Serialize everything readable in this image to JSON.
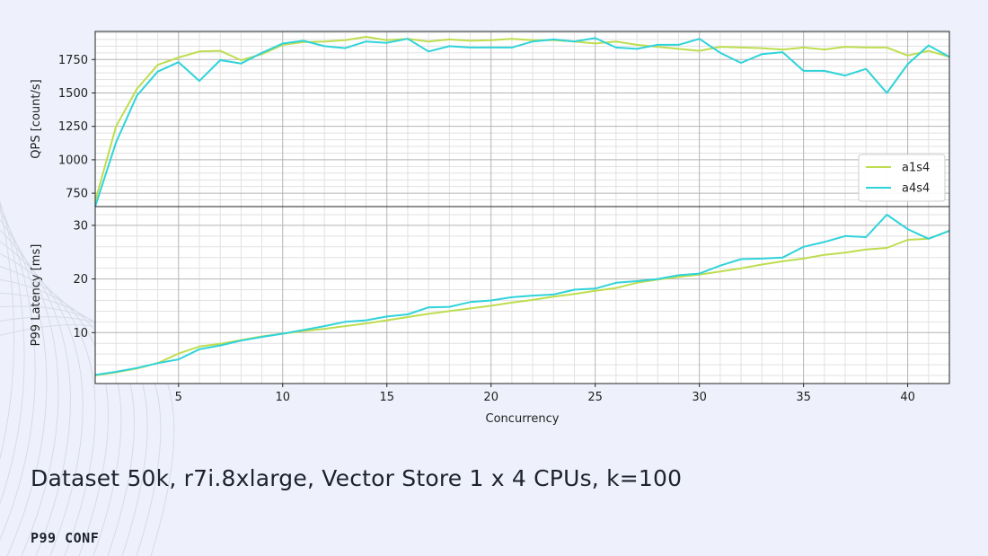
{
  "caption": "Dataset 50k, r7i.8xlarge, Vector Store 1 x 4 CPUs, k=100",
  "brand": "P99 CONF",
  "colors": {
    "a1s4": "#bedd4f",
    "a4s4": "#2fd3da",
    "grid_major": "#b4b4b4",
    "grid_minor": "#e1e1e1"
  },
  "chart_data": [
    {
      "type": "line",
      "ylabel": "QPS [count/s]",
      "xlabel": "",
      "xlim": [
        1,
        42
      ],
      "ylim": [
        650,
        1960
      ],
      "yticks": [
        750,
        1000,
        1250,
        1500,
        1750
      ],
      "xticks": [
        5,
        10,
        15,
        20,
        25,
        30,
        35,
        40
      ],
      "grid": true,
      "legend": "bottom-right",
      "x": [
        1,
        2,
        3,
        4,
        5,
        6,
        7,
        8,
        9,
        10,
        11,
        12,
        13,
        14,
        15,
        16,
        17,
        18,
        19,
        20,
        21,
        22,
        23,
        24,
        25,
        26,
        27,
        28,
        29,
        30,
        31,
        32,
        33,
        34,
        35,
        36,
        37,
        38,
        39,
        40,
        41,
        42
      ],
      "series": [
        {
          "name": "a1s4",
          "values": [
            690,
            1250,
            1530,
            1710,
            1765,
            1810,
            1815,
            1745,
            1790,
            1860,
            1880,
            1885,
            1895,
            1920,
            1895,
            1905,
            1885,
            1900,
            1890,
            1895,
            1905,
            1895,
            1895,
            1885,
            1870,
            1885,
            1860,
            1845,
            1830,
            1815,
            1845,
            1840,
            1835,
            1825,
            1840,
            1825,
            1845,
            1840,
            1840,
            1780,
            1815,
            1770
          ]
        },
        {
          "name": "a4s4",
          "values": [
            650,
            1130,
            1480,
            1660,
            1730,
            1590,
            1745,
            1720,
            1800,
            1870,
            1890,
            1850,
            1835,
            1885,
            1875,
            1905,
            1810,
            1850,
            1840,
            1840,
            1840,
            1885,
            1900,
            1885,
            1910,
            1840,
            1830,
            1860,
            1860,
            1905,
            1800,
            1725,
            1790,
            1805,
            1665,
            1665,
            1630,
            1680,
            1500,
            1715,
            1855,
            1770
          ]
        }
      ]
    },
    {
      "type": "line",
      "ylabel": "P99 Latency [ms]",
      "xlabel": "Concurrency",
      "xlim": [
        1,
        42
      ],
      "ylim": [
        0.5,
        33.5
      ],
      "yticks": [
        10,
        20,
        30
      ],
      "xticks": [
        5,
        10,
        15,
        20,
        25,
        30,
        35,
        40
      ],
      "grid": true,
      "x": [
        1,
        2,
        3,
        4,
        5,
        6,
        7,
        8,
        9,
        10,
        11,
        12,
        13,
        14,
        15,
        16,
        17,
        18,
        19,
        20,
        21,
        22,
        23,
        24,
        25,
        26,
        27,
        28,
        29,
        30,
        31,
        32,
        33,
        34,
        35,
        36,
        37,
        38,
        39,
        40,
        41,
        42
      ],
      "series": [
        {
          "name": "a1s4",
          "values": [
            2.0,
            2.6,
            3.3,
            4.3,
            6.1,
            7.4,
            7.9,
            8.6,
            9.3,
            9.8,
            10.3,
            10.7,
            11.2,
            11.7,
            12.3,
            12.9,
            13.5,
            14.0,
            14.5,
            15.0,
            15.6,
            16.1,
            16.7,
            17.2,
            17.8,
            18.3,
            19.3,
            19.9,
            20.4,
            20.8,
            21.4,
            22.0,
            22.7,
            23.3,
            23.8,
            24.5,
            24.9,
            25.5,
            25.8,
            27.3,
            27.5,
            29.0
          ]
        },
        {
          "name": "a4s4",
          "values": [
            2.1,
            2.7,
            3.4,
            4.3,
            5.0,
            6.9,
            7.6,
            8.5,
            9.2,
            9.8,
            10.5,
            11.2,
            12.0,
            12.3,
            13.0,
            13.4,
            14.7,
            14.8,
            15.7,
            16.0,
            16.6,
            16.9,
            17.1,
            18.0,
            18.2,
            19.3,
            19.6,
            20.0,
            20.7,
            21.0,
            22.5,
            23.7,
            23.8,
            24.0,
            26.0,
            26.9,
            28.0,
            27.8,
            32.0,
            29.3,
            27.5,
            29.0
          ]
        }
      ]
    }
  ]
}
